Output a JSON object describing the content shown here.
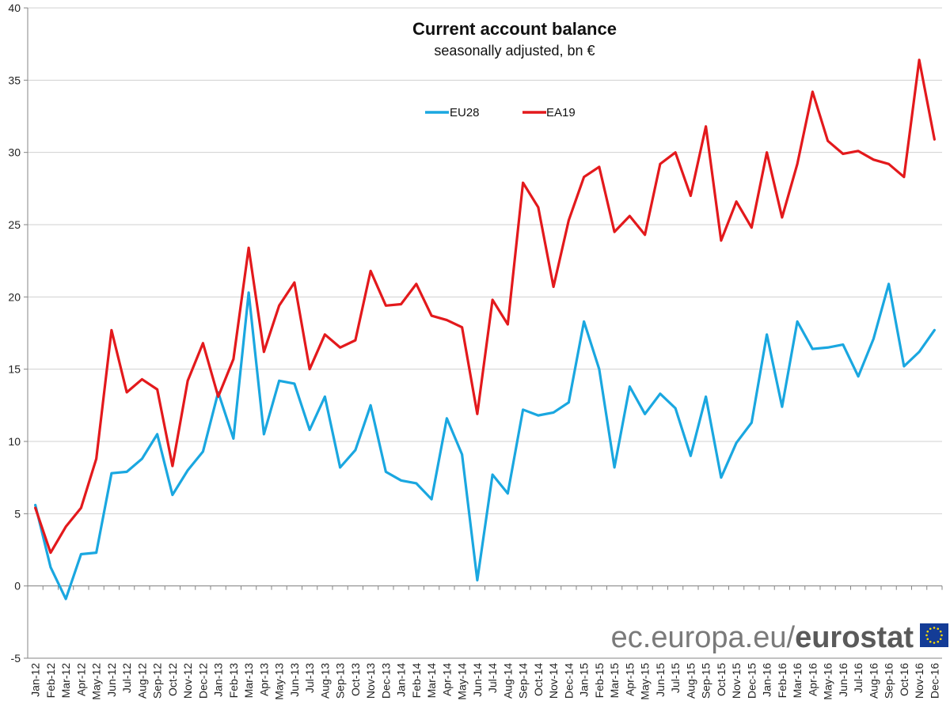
{
  "chart_data": {
    "type": "line",
    "title": "Current account balance",
    "subtitle": "seasonally adjusted, bn €",
    "xlabel": "",
    "ylabel": "",
    "ylim": [
      -5,
      40
    ],
    "yticks": [
      -5,
      0,
      5,
      10,
      15,
      20,
      25,
      30,
      35,
      40
    ],
    "grid": true,
    "legend_position": "top-center",
    "categories": [
      "Jan-12",
      "Feb-12",
      "Mar-12",
      "Apr-12",
      "May-12",
      "Jun-12",
      "Jul-12",
      "Aug-12",
      "Sep-12",
      "Oct-12",
      "Nov-12",
      "Dec-12",
      "Jan-13",
      "Feb-13",
      "Mar-13",
      "Apr-13",
      "May-13",
      "Jun-13",
      "Jul-13",
      "Aug-13",
      "Sep-13",
      "Oct-13",
      "Nov-13",
      "Dec-13",
      "Jan-14",
      "Feb-14",
      "Mar-14",
      "Apr-14",
      "May-14",
      "Jun-14",
      "Jul-14",
      "Aug-14",
      "Sep-14",
      "Oct-14",
      "Nov-14",
      "Dec-14",
      "Jan-15",
      "Feb-15",
      "Mar-15",
      "Apr-15",
      "May-15",
      "Jun-15",
      "Jul-15",
      "Aug-15",
      "Sep-15",
      "Oct-15",
      "Nov-15",
      "Dec-15",
      "Jan-16",
      "Feb-16",
      "Mar-16",
      "Apr-16",
      "May-16",
      "Jun-16",
      "Jul-16",
      "Aug-16",
      "Sep-16",
      "Oct-16",
      "Nov-16",
      "Dec-16"
    ],
    "series": [
      {
        "name": "EU28",
        "color": "#1aa7e0",
        "values": [
          5.6,
          1.3,
          -0.9,
          2.2,
          2.3,
          7.8,
          7.9,
          8.8,
          10.5,
          6.3,
          8.0,
          9.3,
          13.4,
          10.2,
          20.3,
          10.5,
          14.2,
          14.0,
          10.8,
          13.1,
          8.2,
          9.4,
          12.5,
          7.9,
          7.3,
          7.1,
          6.0,
          11.6,
          9.1,
          0.4,
          7.7,
          6.4,
          12.2,
          11.8,
          12.0,
          12.7,
          18.3,
          15.0,
          8.2,
          13.8,
          11.9,
          13.3,
          12.3,
          9.0,
          13.1,
          7.5,
          9.9,
          11.3,
          17.4,
          12.4,
          18.3,
          16.4,
          16.5,
          16.7,
          14.5,
          17.1,
          20.9,
          15.2,
          16.2,
          17.7
        ]
      },
      {
        "name": "EA19",
        "color": "#e3191c",
        "values": [
          5.4,
          2.3,
          4.1,
          5.4,
          8.8,
          17.7,
          13.4,
          14.3,
          13.6,
          8.3,
          14.2,
          16.8,
          13.1,
          15.7,
          23.4,
          16.2,
          19.4,
          21.0,
          15.0,
          17.4,
          16.5,
          17.0,
          21.8,
          19.4,
          19.5,
          20.9,
          18.7,
          18.4,
          17.9,
          11.9,
          19.8,
          18.1,
          27.9,
          26.2,
          20.7,
          25.3,
          28.3,
          29.0,
          24.5,
          25.6,
          24.3,
          29.2,
          30.0,
          27.0,
          31.8,
          23.9,
          26.6,
          24.8,
          30.0,
          25.5,
          29.2,
          34.2,
          30.8,
          29.9,
          30.1,
          29.5,
          29.2,
          28.3,
          36.4,
          30.9
        ]
      }
    ]
  },
  "watermark": {
    "url": "ec.europa.eu/",
    "brand": "eurostat",
    "logo_icon": "eu-flag-icon",
    "flag_color": "#143c96",
    "star_color": "#ffdd00"
  }
}
